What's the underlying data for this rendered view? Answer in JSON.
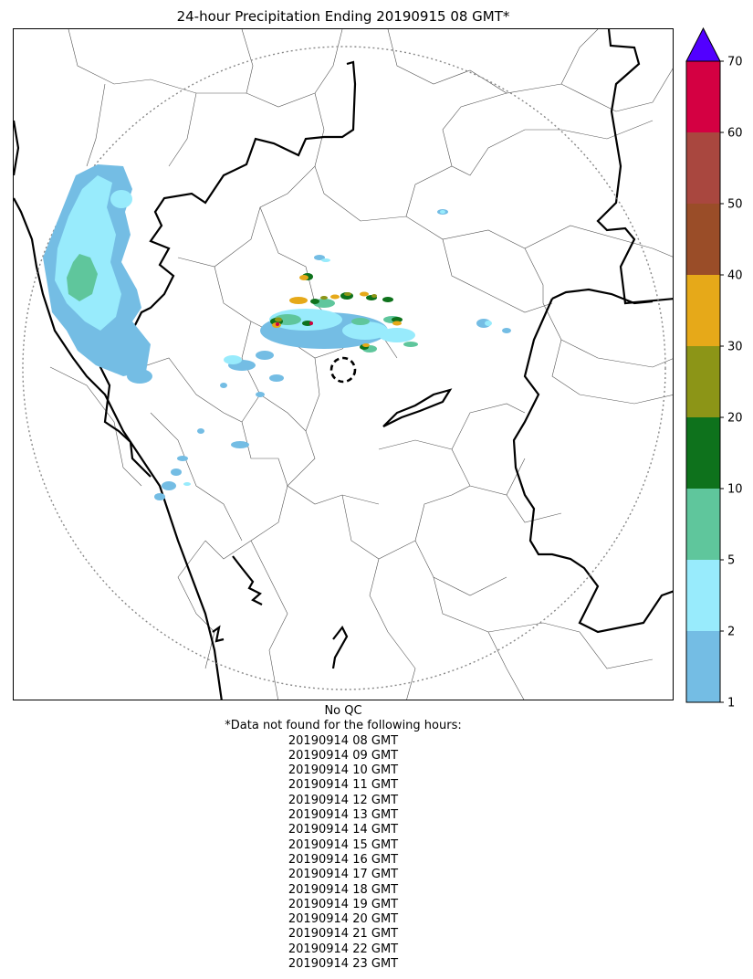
{
  "title": "24-hour Precipitation Ending 20190915 08 GMT*",
  "colorbar": {
    "bins": [
      {
        "from": 1,
        "to": 2,
        "color": "#74bde4"
      },
      {
        "from": 2,
        "to": 5,
        "color": "#98ebfc"
      },
      {
        "from": 5,
        "to": 10,
        "color": "#5fc69c"
      },
      {
        "from": 10,
        "to": 20,
        "color": "#0e721c"
      },
      {
        "from": 20,
        "to": 30,
        "color": "#8c9517"
      },
      {
        "from": 30,
        "to": 40,
        "color": "#e6a919"
      },
      {
        "from": 40,
        "to": 50,
        "color": "#9a4d28"
      },
      {
        "from": 50,
        "to": 60,
        "color": "#a9473f"
      },
      {
        "from": 60,
        "to": 70,
        "color": "#d40042"
      }
    ],
    "over_color": "#5200ff",
    "tick_labels": [
      "1",
      "2",
      "5",
      "10",
      "20",
      "30",
      "40",
      "50",
      "60",
      "70"
    ]
  },
  "footer": {
    "qc_note": "No QC",
    "missing_header": "*Data not found for the following hours:",
    "missing_hours": [
      "20190914 08 GMT",
      "20190914 09 GMT",
      "20190914 10 GMT",
      "20190914 11 GMT",
      "20190914 12 GMT",
      "20190914 13 GMT",
      "20190914 14 GMT",
      "20190914 15 GMT",
      "20190914 16 GMT",
      "20190914 17 GMT",
      "20190914 18 GMT",
      "20190914 19 GMT",
      "20190914 20 GMT",
      "20190914 21 GMT",
      "20190914 22 GMT",
      "20190914 23 GMT"
    ]
  }
}
